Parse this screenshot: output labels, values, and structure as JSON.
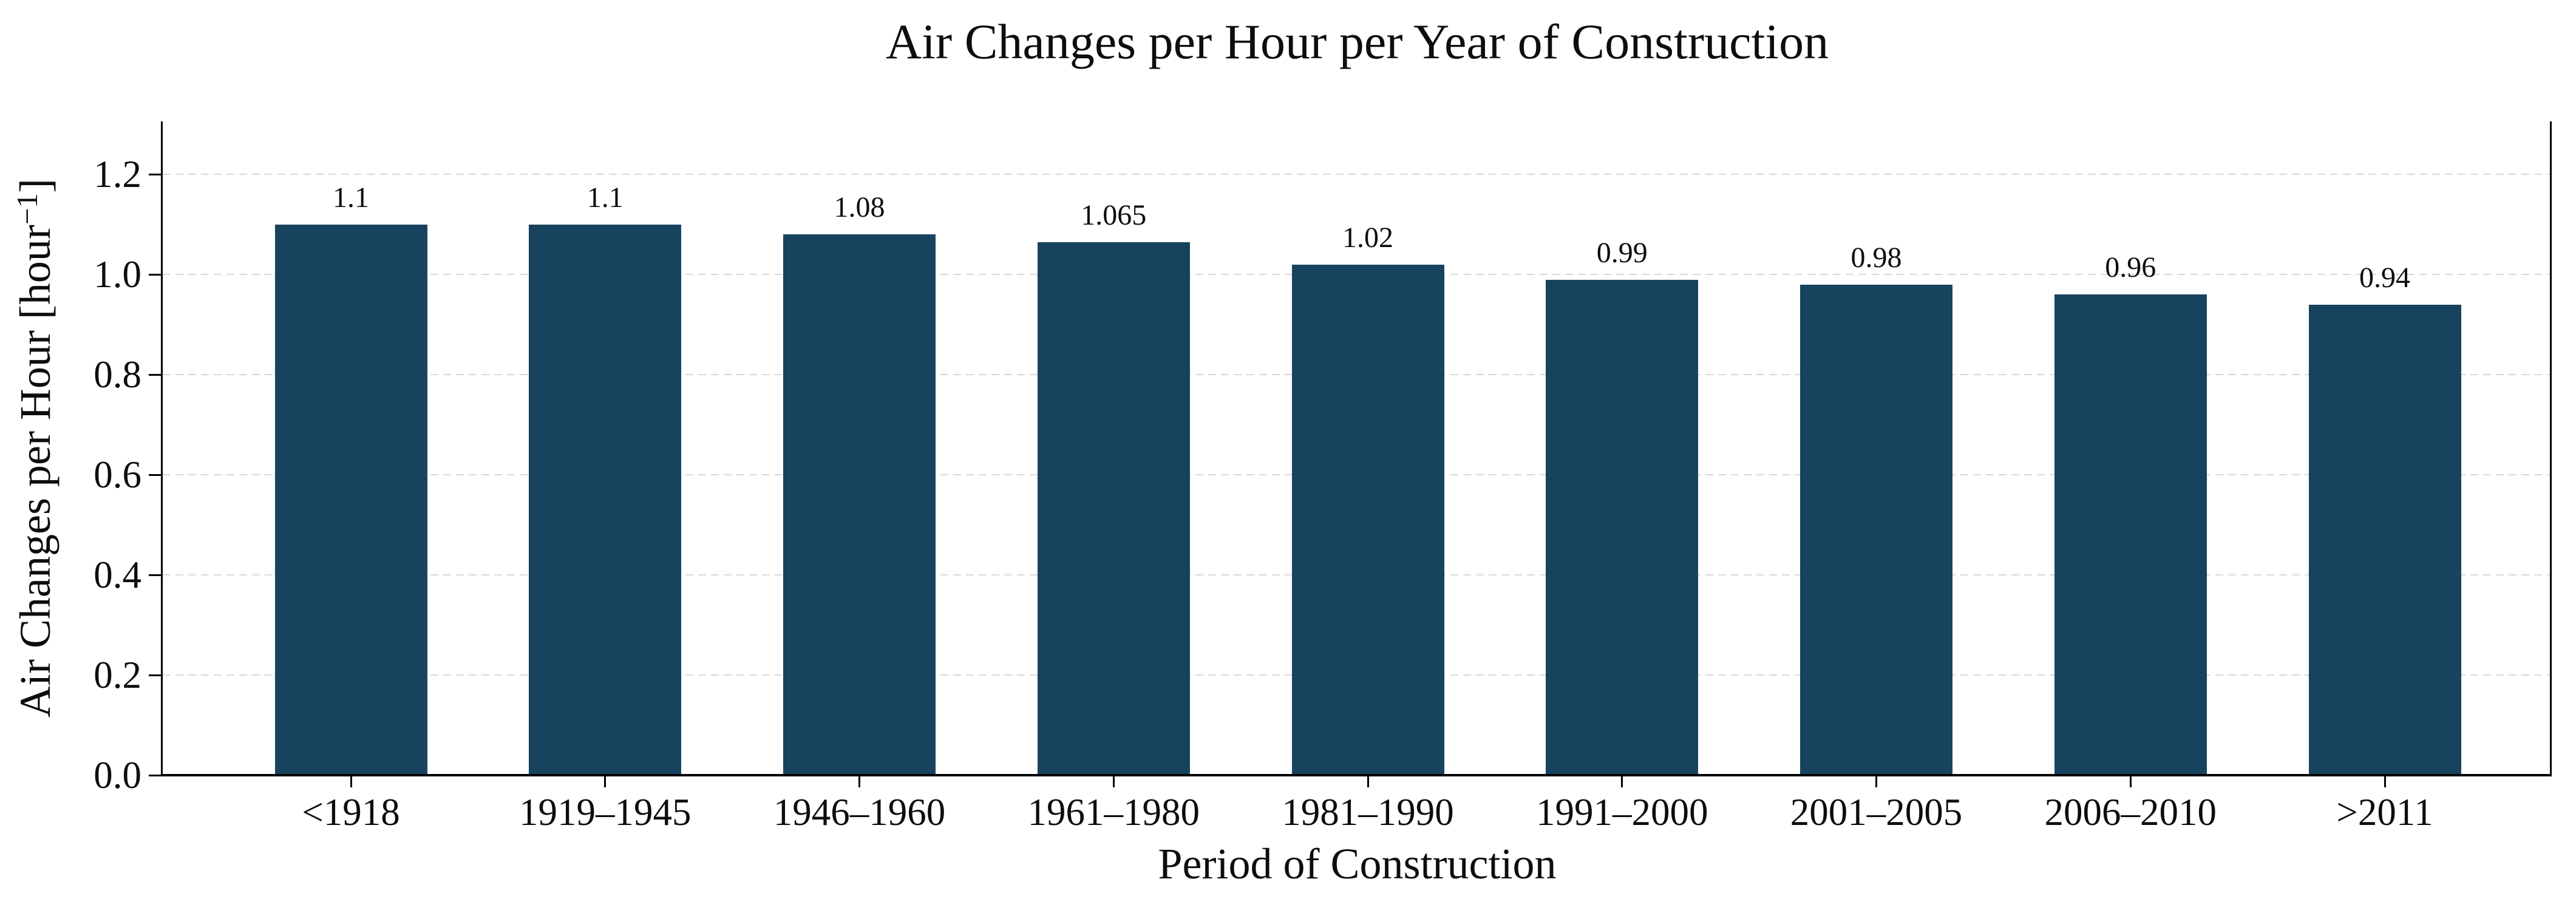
{
  "chart_data": {
    "type": "bar",
    "title": "Air Changes per Hour per Year of Construction",
    "xlabel": "Period of Construction",
    "ylabel": "Air Changes per Hour [hour⁻¹]",
    "ylabel_parts": {
      "prefix": "Air Changes per Hour [hour",
      "superscript": "−1",
      "suffix": "]"
    },
    "categories": [
      "<1918",
      "1919–1945",
      "1946–1960",
      "1961–1980",
      "1981–1990",
      "1991–2000",
      "2001–2005",
      "2006–2010",
      ">2011"
    ],
    "values": [
      1.1,
      1.1,
      1.08,
      1.065,
      1.02,
      0.99,
      0.98,
      0.96,
      0.94
    ],
    "bar_labels": [
      "1.1",
      "1.1",
      "1.08",
      "1.065",
      "1.02",
      "0.99",
      "0.98",
      "0.96",
      "0.94"
    ],
    "yticks": [
      0.0,
      0.2,
      0.4,
      0.6,
      0.8,
      1.0,
      1.2
    ],
    "ytick_labels": [
      "0.0",
      "0.2",
      "0.4",
      "0.6",
      "0.8",
      "1.0",
      "1.2"
    ],
    "ylim": [
      0,
      1.306
    ],
    "grid": "horizontal-dashed",
    "legend": "none",
    "colors": {
      "bar": "#17435e",
      "grid": "#d9d9d9",
      "axis": "#000000",
      "text": "#0d0d0d",
      "background": "#ffffff"
    }
  }
}
